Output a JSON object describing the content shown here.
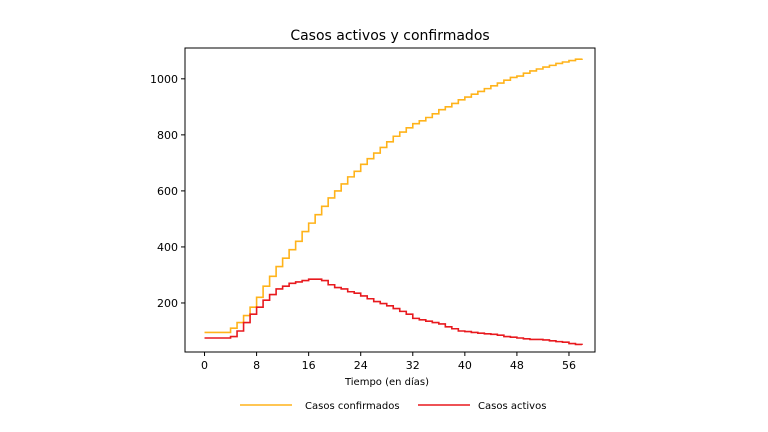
{
  "chart_data": {
    "type": "line",
    "title": "Casos activos y confirmados",
    "xlabel": "Tiempo (en días)",
    "ylabel": "",
    "xlim": [
      -3,
      60
    ],
    "ylim": [
      25,
      1110
    ],
    "xticks": [
      0,
      8,
      16,
      24,
      32,
      40,
      48,
      56
    ],
    "yticks": [
      200,
      400,
      600,
      800,
      1000
    ],
    "grid": false,
    "legend_position": "bottom-center",
    "step": "post",
    "x": [
      0,
      1,
      2,
      3,
      4,
      5,
      6,
      7,
      8,
      9,
      10,
      11,
      12,
      13,
      14,
      15,
      16,
      17,
      18,
      19,
      20,
      21,
      22,
      23,
      24,
      25,
      26,
      27,
      28,
      29,
      30,
      31,
      32,
      33,
      34,
      35,
      36,
      37,
      38,
      39,
      40,
      41,
      42,
      43,
      44,
      45,
      46,
      47,
      48,
      49,
      50,
      51,
      52,
      53,
      54,
      55,
      56,
      57,
      58
    ],
    "series": [
      {
        "name": "Casos confirmados",
        "color": "#ffb31a",
        "values": [
          95,
          95,
          95,
          95,
          110,
          130,
          155,
          185,
          220,
          260,
          295,
          330,
          360,
          390,
          420,
          455,
          485,
          515,
          545,
          575,
          600,
          625,
          650,
          670,
          695,
          715,
          735,
          755,
          775,
          795,
          810,
          825,
          840,
          850,
          862,
          875,
          890,
          900,
          912,
          925,
          935,
          945,
          955,
          965,
          975,
          985,
          995,
          1005,
          1010,
          1020,
          1028,
          1035,
          1042,
          1048,
          1055,
          1060,
          1065,
          1070,
          1072
        ]
      },
      {
        "name": "Casos activos",
        "color": "#e8191e",
        "values": [
          75,
          75,
          75,
          75,
          80,
          100,
          130,
          160,
          185,
          210,
          230,
          250,
          260,
          270,
          275,
          280,
          285,
          285,
          280,
          265,
          255,
          250,
          240,
          235,
          225,
          215,
          205,
          198,
          190,
          180,
          170,
          160,
          145,
          140,
          135,
          130,
          125,
          115,
          108,
          100,
          98,
          95,
          92,
          90,
          88,
          85,
          80,
          78,
          75,
          72,
          70,
          70,
          68,
          65,
          62,
          60,
          55,
          52,
          50
        ]
      }
    ]
  }
}
